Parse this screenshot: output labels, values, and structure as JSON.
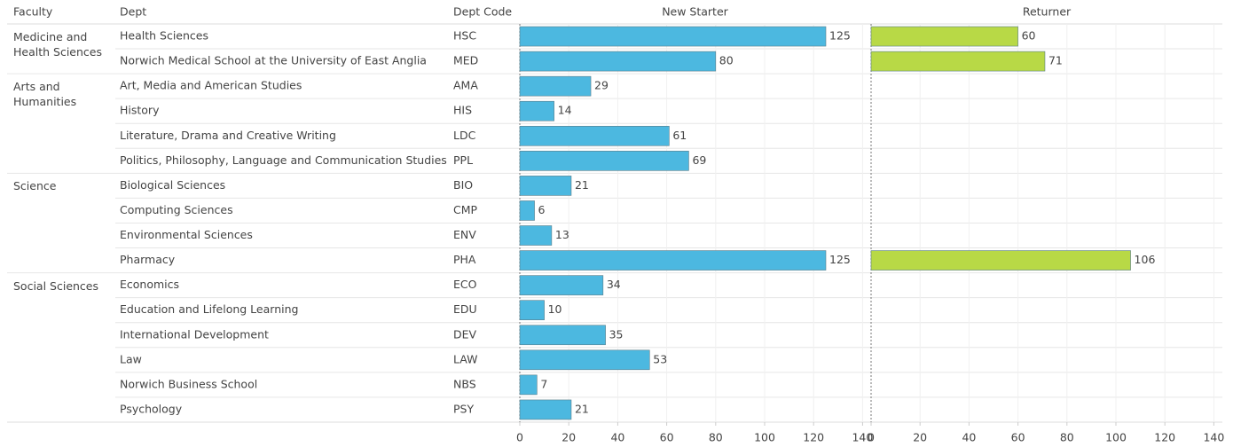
{
  "chart_data": {
    "type": "bar",
    "orientation": "horizontal",
    "headers": {
      "faculty": "Faculty",
      "dept": "Dept",
      "code": "Dept Code"
    },
    "faculty": [
      "Medicine and Health Sciences",
      null,
      "Arts and Humanities",
      null,
      null,
      null,
      "Science",
      null,
      null,
      null,
      "Social Sciences",
      null,
      null,
      null,
      null,
      null
    ],
    "categories": [
      "Health Sciences",
      "Norwich Medical School at the University of East Anglia",
      "Art, Media and American Studies",
      "History",
      "Literature, Drama and Creative Writing",
      "Politics, Philosophy, Language and Communication Studies",
      "Biological Sciences",
      "Computing Sciences",
      "Environmental Sciences",
      "Pharmacy",
      "Economics",
      "Education and Lifelong Learning",
      "International Development",
      "Law",
      "Norwich Business School",
      "Psychology"
    ],
    "codes": [
      "HSC",
      "MED",
      "AMA",
      "HIS",
      "LDC",
      "PPL",
      "BIO",
      "CMP",
      "ENV",
      "PHA",
      "ECO",
      "EDU",
      "DEV",
      "LAW",
      "NBS",
      "PSY"
    ],
    "series": [
      {
        "name": "New Starter",
        "color": "#4cb8e0",
        "values": [
          125,
          80,
          29,
          14,
          61,
          69,
          21,
          6,
          13,
          125,
          34,
          10,
          35,
          53,
          7,
          21
        ]
      },
      {
        "name": "Returner",
        "color": "#b8d946",
        "values": [
          60,
          71,
          null,
          null,
          null,
          null,
          null,
          null,
          null,
          106,
          null,
          null,
          null,
          null,
          null,
          null
        ]
      }
    ],
    "xlim": [
      0,
      140
    ],
    "xticks": [
      0,
      20,
      40,
      60,
      80,
      100,
      120,
      140
    ],
    "grid": true
  }
}
